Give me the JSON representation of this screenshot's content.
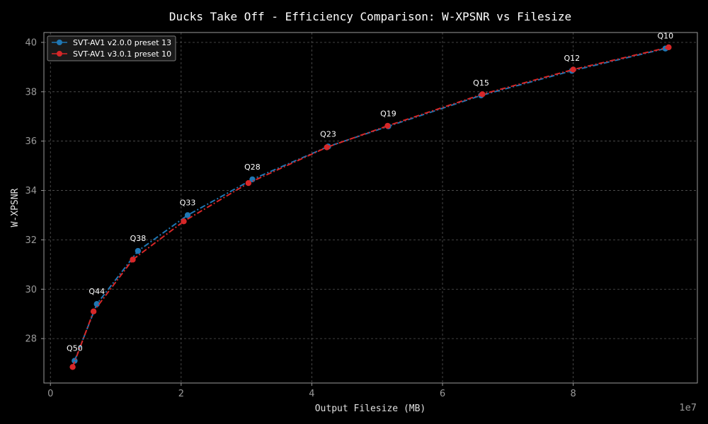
{
  "chart_data": {
    "type": "line",
    "title": "Ducks Take Off - Efficiency Comparison: W-XPSNR vs Filesize",
    "xlabel": "Output Filesize (MB)",
    "ylabel": "W-XPSNR",
    "x_offset_label": "1e7",
    "xlim": [
      -1000000,
      99000000
    ],
    "ylim": [
      26.2,
      40.4
    ],
    "x_ticks": [
      0,
      20000000,
      40000000,
      60000000,
      80000000
    ],
    "x_tick_labels": [
      "0",
      "2",
      "4",
      "6",
      "8"
    ],
    "y_ticks": [
      28,
      30,
      32,
      34,
      36,
      38,
      40
    ],
    "y_tick_labels": [
      "28",
      "30",
      "32",
      "34",
      "36",
      "38",
      "40"
    ],
    "grid": true,
    "legend_position": "top-left",
    "series": [
      {
        "name": "SVT-AV1 v2.0.0 preset 13",
        "color": "#1f77b4",
        "line_style": "dashdot",
        "x": [
          3700000,
          7100000,
          13400000,
          21000000,
          30900000,
          42500000,
          51700000,
          65900000,
          79800000,
          94100000
        ],
        "y": [
          27.1,
          29.4,
          31.55,
          33.0,
          34.45,
          35.78,
          36.6,
          37.85,
          38.85,
          39.75
        ]
      },
      {
        "name": "SVT-AV1 v3.0.1 preset 10",
        "color": "#d62728",
        "line_style": "dashdot",
        "x": [
          3400000,
          6600000,
          12600000,
          20400000,
          30300000,
          42300000,
          51600000,
          66100000,
          80000000,
          94600000
        ],
        "y": [
          26.85,
          29.1,
          31.2,
          32.75,
          34.3,
          35.75,
          36.62,
          37.9,
          38.9,
          39.8
        ]
      }
    ],
    "annotations": [
      {
        "text": "Q50",
        "x": 3700000,
        "y": 27.1
      },
      {
        "text": "Q44",
        "x": 7100000,
        "y": 29.4
      },
      {
        "text": "Q38",
        "x": 13400000,
        "y": 31.55
      },
      {
        "text": "Q33",
        "x": 21000000,
        "y": 33.0
      },
      {
        "text": "Q28",
        "x": 30900000,
        "y": 34.45
      },
      {
        "text": "Q23",
        "x": 42500000,
        "y": 35.78
      },
      {
        "text": "Q19",
        "x": 51700000,
        "y": 36.6
      },
      {
        "text": "Q15",
        "x": 65900000,
        "y": 37.85
      },
      {
        "text": "Q12",
        "x": 79800000,
        "y": 38.85
      },
      {
        "text": "Q10",
        "x": 94100000,
        "y": 39.75
      }
    ],
    "colors": {
      "background": "#000000",
      "axes_edge": "#9a9a9a",
      "grid": "#555555",
      "legend_bg": "#1a1a1a",
      "legend_edge": "#7a7a7a"
    }
  }
}
